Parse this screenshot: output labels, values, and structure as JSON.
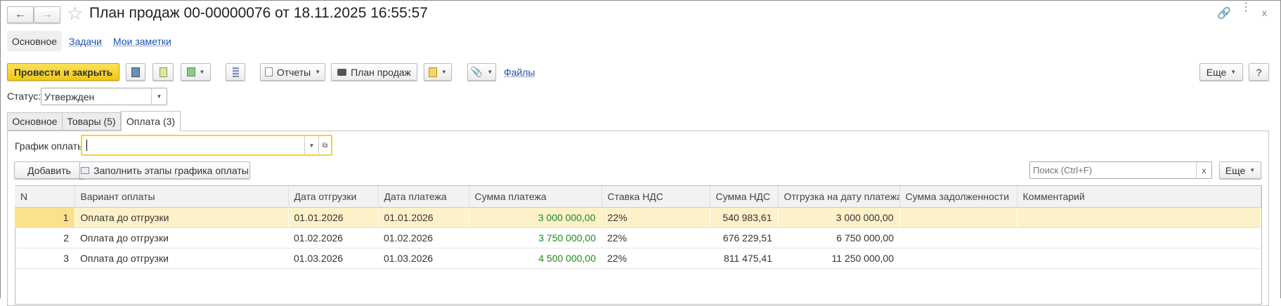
{
  "window": {
    "title": "План продаж 00-00000076 от 18.11.2025 16:55:57",
    "back_icon": "arrow-left",
    "forward_icon": "arrow-right",
    "favorite_icon": "star",
    "link_icon": "link",
    "menu_icon": "vertical-dots",
    "close_label": "x"
  },
  "nav_tabs": [
    {
      "label": "Основное",
      "active": true
    },
    {
      "label": "Задачи"
    },
    {
      "label": "Мои заметки"
    }
  ],
  "toolbar": {
    "post_close": "Провести и закрыть",
    "reports": "Отчеты",
    "print_plan": "План продаж",
    "files": "Файлы",
    "more": "Еще",
    "help": "?"
  },
  "status": {
    "label": "Статус:",
    "value": "Утвержден"
  },
  "tabs": [
    {
      "label": "Основное"
    },
    {
      "label": "Товары (5)"
    },
    {
      "label": "Оплата (3)",
      "active": true
    }
  ],
  "payment": {
    "schedule_label": "График оплаты:",
    "schedule_value": "",
    "add": "Добавить",
    "fill": "Заполнить этапы графика оплаты",
    "search_placeholder": "Поиск (Ctrl+F)",
    "search_clear": "x",
    "more": "Еще",
    "columns": [
      "N",
      "Вариант оплаты",
      "Дата отгрузки",
      "Дата платежа",
      "Сумма платежа",
      "Ставка НДС",
      "Сумма НДС",
      "Отгрузка на дату платежа",
      "Сумма задолженности",
      "Комментарий"
    ],
    "rows": [
      [
        "1",
        "Оплата до отгрузки",
        "01.01.2026",
        "01.01.2026",
        "3 000 000,00",
        "22%",
        "540 983,61",
        "3 000 000,00",
        "",
        ""
      ],
      [
        "2",
        "Оплата до отгрузки",
        "01.02.2026",
        "01.02.2026",
        "3 750 000,00",
        "22%",
        "676 229,51",
        "6 750 000,00",
        "",
        ""
      ],
      [
        "3",
        "Оплата до отгрузки",
        "01.03.2026",
        "01.03.2026",
        "4 500 000,00",
        "22%",
        "811 475,41",
        "11 250 000,00",
        "",
        ""
      ]
    ],
    "selected_row": 1,
    "colors": {
      "accent": "#f5d32e",
      "selected_row": "#fcf1c8",
      "amount_green": "#1f8b1f"
    }
  }
}
